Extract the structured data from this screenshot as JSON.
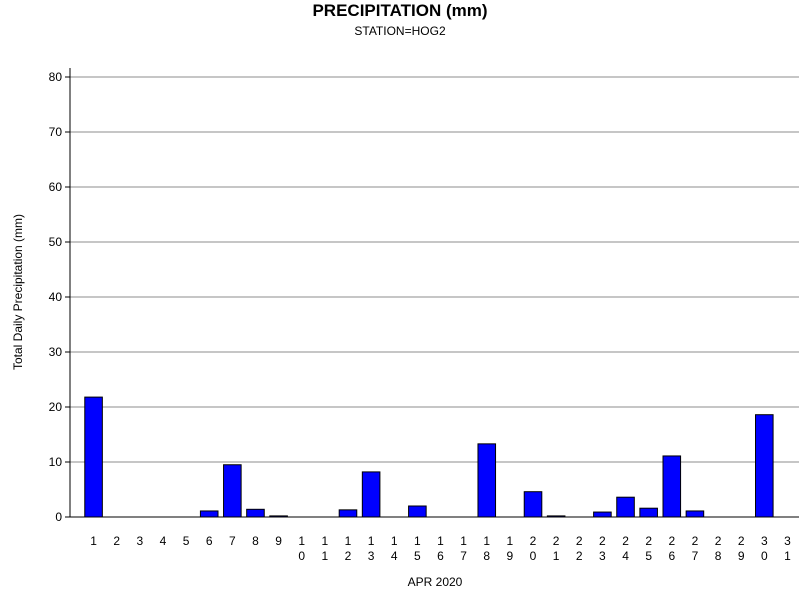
{
  "chart_data": {
    "type": "bar",
    "title": "PRECIPITATION (mm)",
    "subtitle": "STATION=HOG2",
    "xlabel": "APR 2020",
    "ylabel": "Total Daily Precipitation (mm)",
    "ylim": [
      0,
      80
    ],
    "yticks": [
      0,
      10,
      20,
      30,
      40,
      50,
      60,
      70,
      80
    ],
    "grid": true,
    "bar_color": "#0000ff",
    "categories": [
      "1",
      "2",
      "3",
      "4",
      "5",
      "6",
      "7",
      "8",
      "9",
      "10",
      "11",
      "12",
      "13",
      "14",
      "15",
      "16",
      "17",
      "18",
      "19",
      "20",
      "21",
      "22",
      "23",
      "24",
      "25",
      "26",
      "27",
      "28",
      "29",
      "30",
      "31"
    ],
    "values": [
      21.8,
      0,
      0,
      0,
      0,
      1.1,
      9.5,
      1.4,
      0.2,
      0,
      0,
      1.3,
      8.2,
      0,
      2.0,
      0,
      0,
      13.3,
      0,
      4.6,
      0.2,
      0,
      0.9,
      3.6,
      1.6,
      11.1,
      1.1,
      0,
      0,
      18.6,
      0
    ]
  }
}
